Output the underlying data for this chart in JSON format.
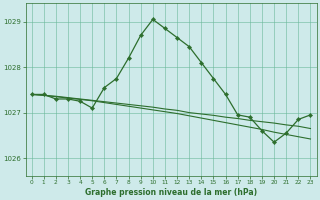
{
  "title": "Graphe pression niveau de la mer (hPa)",
  "bg_color": "#ceeaea",
  "grid_color": "#6ab89a",
  "line_color": "#2d6e2d",
  "xlim": [
    -0.5,
    23.5
  ],
  "ylim": [
    1025.6,
    1029.4
  ],
  "yticks": [
    1026,
    1027,
    1028,
    1029
  ],
  "xticks": [
    0,
    1,
    2,
    3,
    4,
    5,
    6,
    7,
    8,
    9,
    10,
    11,
    12,
    13,
    14,
    15,
    16,
    17,
    18,
    19,
    20,
    21,
    22,
    23
  ],
  "series1_x": [
    0,
    1,
    2,
    3,
    4,
    5,
    6,
    7,
    8,
    9,
    10,
    11,
    12,
    13,
    14,
    15,
    16,
    17,
    18,
    19,
    20,
    21,
    22,
    23
  ],
  "series1_y": [
    1027.4,
    1027.4,
    1027.3,
    1027.3,
    1027.25,
    1027.1,
    1027.55,
    1027.75,
    1028.2,
    1028.7,
    1029.05,
    1028.85,
    1028.65,
    1028.45,
    1028.1,
    1027.75,
    1027.4,
    1026.95,
    1026.9,
    1026.6,
    1026.35,
    1026.55,
    1026.85,
    1026.95
  ],
  "series2_x": [
    0,
    1,
    2,
    3,
    4,
    5,
    6,
    7,
    8,
    9,
    10,
    11,
    12,
    13,
    14,
    15,
    16,
    17,
    18,
    19,
    20,
    21,
    22,
    23
  ],
  "series2_y": [
    1027.4,
    1027.38,
    1027.36,
    1027.33,
    1027.3,
    1027.27,
    1027.24,
    1027.21,
    1027.18,
    1027.15,
    1027.12,
    1027.08,
    1027.05,
    1027.0,
    1026.97,
    1026.94,
    1026.9,
    1026.87,
    1026.83,
    1026.8,
    1026.77,
    1026.73,
    1026.7,
    1026.65
  ],
  "series3_x": [
    0,
    1,
    2,
    3,
    4,
    5,
    6,
    7,
    8,
    9,
    10,
    11,
    12,
    13,
    14,
    15,
    16,
    17,
    18,
    19,
    20,
    21,
    22,
    23
  ],
  "series3_y": [
    1027.4,
    1027.38,
    1027.35,
    1027.32,
    1027.29,
    1027.26,
    1027.22,
    1027.18,
    1027.14,
    1027.1,
    1027.06,
    1027.02,
    1026.98,
    1026.93,
    1026.88,
    1026.83,
    1026.78,
    1026.73,
    1026.68,
    1026.63,
    1026.57,
    1026.52,
    1026.47,
    1026.42
  ]
}
